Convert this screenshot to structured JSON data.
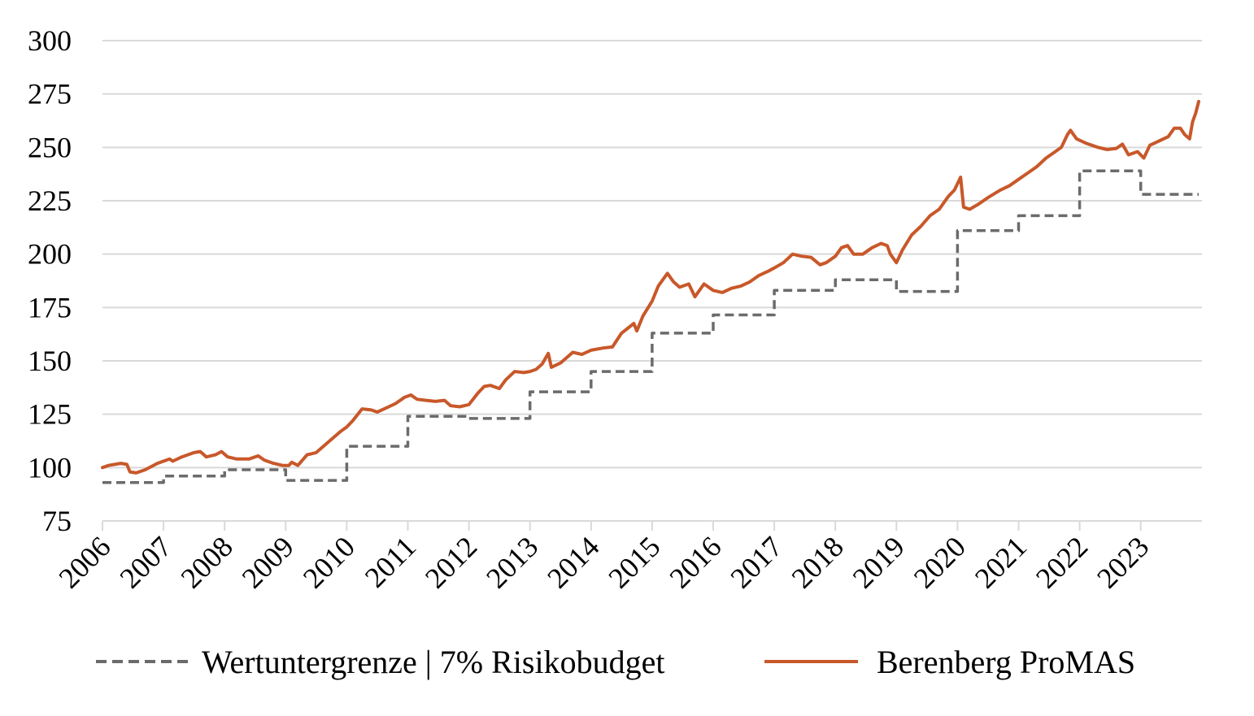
{
  "chart_data": {
    "type": "line",
    "title": "",
    "xlabel": "",
    "ylabel": "",
    "ylim": [
      75,
      300
    ],
    "xlim": [
      2006,
      2023.95
    ],
    "yticks": [
      75,
      100,
      125,
      150,
      175,
      200,
      225,
      250,
      275,
      300
    ],
    "xticks": [
      "2006",
      "2007",
      "2008",
      "2009",
      "2010",
      "2011",
      "2012",
      "2013",
      "2014",
      "2015",
      "2016",
      "2017",
      "2018",
      "2019",
      "2020",
      "2021",
      "2022",
      "2023"
    ],
    "grid": "horizontal",
    "legend_position": "bottom",
    "series": [
      {
        "name": "Wertuntergrenze | 7% Risikobudget",
        "style": "dashed-step",
        "color": "#6b6b6b",
        "points": [
          [
            2006.0,
            93
          ],
          [
            2007.0,
            93
          ],
          [
            2007.0,
            96
          ],
          [
            2008.0,
            96
          ],
          [
            2008.0,
            99
          ],
          [
            2009.0,
            99
          ],
          [
            2009.0,
            94
          ],
          [
            2010.0,
            94
          ],
          [
            2010.0,
            110
          ],
          [
            2011.0,
            110
          ],
          [
            2011.0,
            124
          ],
          [
            2012.0,
            124
          ],
          [
            2012.0,
            123
          ],
          [
            2013.0,
            123
          ],
          [
            2013.0,
            135.5
          ],
          [
            2014.0,
            135.5
          ],
          [
            2014.0,
            145
          ],
          [
            2015.0,
            145
          ],
          [
            2015.0,
            163
          ],
          [
            2016.0,
            163
          ],
          [
            2016.0,
            171.5
          ],
          [
            2017.0,
            171.5
          ],
          [
            2017.0,
            183
          ],
          [
            2018.0,
            183
          ],
          [
            2018.0,
            188
          ],
          [
            2019.0,
            188
          ],
          [
            2019.0,
            182.5
          ],
          [
            2020.0,
            182.5
          ],
          [
            2020.0,
            211
          ],
          [
            2021.0,
            211
          ],
          [
            2021.0,
            218
          ],
          [
            2022.0,
            218
          ],
          [
            2022.0,
            239
          ],
          [
            2023.0,
            239
          ],
          [
            2023.0,
            228
          ],
          [
            2023.95,
            228
          ]
        ]
      },
      {
        "name": "Berenberg ProMAS",
        "style": "solid",
        "color": "#c8582a",
        "points": [
          [
            2006.0,
            100
          ],
          [
            2006.1,
            101
          ],
          [
            2006.3,
            102
          ],
          [
            2006.4,
            101.5
          ],
          [
            2006.45,
            98
          ],
          [
            2006.55,
            97.5
          ],
          [
            2006.7,
            99
          ],
          [
            2006.9,
            102
          ],
          [
            2007.1,
            104
          ],
          [
            2007.15,
            103
          ],
          [
            2007.3,
            105
          ],
          [
            2007.5,
            107
          ],
          [
            2007.6,
            107.5
          ],
          [
            2007.7,
            105
          ],
          [
            2007.85,
            106
          ],
          [
            2007.95,
            107.5
          ],
          [
            2008.05,
            105
          ],
          [
            2008.2,
            104
          ],
          [
            2008.4,
            104
          ],
          [
            2008.55,
            105.5
          ],
          [
            2008.65,
            103.5
          ],
          [
            2008.8,
            102
          ],
          [
            2008.95,
            101
          ],
          [
            2009.05,
            101
          ],
          [
            2009.1,
            102.5
          ],
          [
            2009.2,
            101
          ],
          [
            2009.35,
            106
          ],
          [
            2009.5,
            107
          ],
          [
            2009.7,
            112
          ],
          [
            2009.9,
            117
          ],
          [
            2010.0,
            119
          ],
          [
            2010.1,
            122
          ],
          [
            2010.25,
            127.5
          ],
          [
            2010.4,
            127
          ],
          [
            2010.5,
            126
          ],
          [
            2010.65,
            128
          ],
          [
            2010.8,
            130
          ],
          [
            2010.95,
            133
          ],
          [
            2011.05,
            134
          ],
          [
            2011.15,
            132
          ],
          [
            2011.3,
            131.5
          ],
          [
            2011.45,
            131
          ],
          [
            2011.6,
            131.5
          ],
          [
            2011.7,
            129
          ],
          [
            2011.85,
            128.5
          ],
          [
            2012.0,
            129.5
          ],
          [
            2012.15,
            135
          ],
          [
            2012.25,
            138
          ],
          [
            2012.35,
            138.5
          ],
          [
            2012.5,
            137
          ],
          [
            2012.6,
            141
          ],
          [
            2012.75,
            145
          ],
          [
            2012.9,
            144.5
          ],
          [
            2013.0,
            145
          ],
          [
            2013.1,
            146
          ],
          [
            2013.2,
            148.5
          ],
          [
            2013.3,
            153.5
          ],
          [
            2013.35,
            147
          ],
          [
            2013.5,
            149
          ],
          [
            2013.7,
            154
          ],
          [
            2013.85,
            153
          ],
          [
            2014.0,
            155
          ],
          [
            2014.2,
            156
          ],
          [
            2014.35,
            156.5
          ],
          [
            2014.5,
            163
          ],
          [
            2014.7,
            167.5
          ],
          [
            2014.75,
            164
          ],
          [
            2014.85,
            171
          ],
          [
            2015.0,
            178
          ],
          [
            2015.1,
            185
          ],
          [
            2015.25,
            191
          ],
          [
            2015.35,
            187
          ],
          [
            2015.45,
            184.5
          ],
          [
            2015.6,
            186
          ],
          [
            2015.7,
            180
          ],
          [
            2015.85,
            186
          ],
          [
            2016.0,
            183
          ],
          [
            2016.15,
            182
          ],
          [
            2016.3,
            184
          ],
          [
            2016.45,
            185
          ],
          [
            2016.6,
            187
          ],
          [
            2016.75,
            190
          ],
          [
            2016.9,
            192
          ],
          [
            2017.0,
            193.5
          ],
          [
            2017.15,
            196
          ],
          [
            2017.3,
            200
          ],
          [
            2017.45,
            199
          ],
          [
            2017.6,
            198.5
          ],
          [
            2017.75,
            195
          ],
          [
            2017.85,
            196
          ],
          [
            2018.0,
            199
          ],
          [
            2018.1,
            203
          ],
          [
            2018.2,
            204
          ],
          [
            2018.3,
            200
          ],
          [
            2018.45,
            200
          ],
          [
            2018.6,
            203
          ],
          [
            2018.75,
            205
          ],
          [
            2018.85,
            204
          ],
          [
            2018.9,
            200
          ],
          [
            2019.0,
            196
          ],
          [
            2019.1,
            202
          ],
          [
            2019.25,
            209
          ],
          [
            2019.4,
            213
          ],
          [
            2019.55,
            218
          ],
          [
            2019.7,
            221
          ],
          [
            2019.85,
            227
          ],
          [
            2019.95,
            230
          ],
          [
            2020.05,
            236
          ],
          [
            2020.1,
            222
          ],
          [
            2020.2,
            221
          ],
          [
            2020.35,
            223.5
          ],
          [
            2020.5,
            226.5
          ],
          [
            2020.7,
            230
          ],
          [
            2020.85,
            232
          ],
          [
            2021.0,
            235
          ],
          [
            2021.15,
            238
          ],
          [
            2021.3,
            241
          ],
          [
            2021.45,
            245
          ],
          [
            2021.6,
            248
          ],
          [
            2021.7,
            250
          ],
          [
            2021.8,
            256
          ],
          [
            2021.85,
            258
          ],
          [
            2021.95,
            254
          ],
          [
            2022.1,
            252
          ],
          [
            2022.3,
            250
          ],
          [
            2022.45,
            249
          ],
          [
            2022.6,
            249.5
          ],
          [
            2022.7,
            251.5
          ],
          [
            2022.8,
            246.5
          ],
          [
            2022.95,
            248
          ],
          [
            2023.05,
            245
          ],
          [
            2023.15,
            251
          ],
          [
            2023.3,
            253
          ],
          [
            2023.45,
            255
          ],
          [
            2023.55,
            259
          ],
          [
            2023.65,
            259
          ],
          [
            2023.72,
            256
          ],
          [
            2023.8,
            254
          ],
          [
            2023.85,
            262
          ],
          [
            2023.9,
            266
          ],
          [
            2023.95,
            271.5
          ]
        ]
      }
    ]
  }
}
